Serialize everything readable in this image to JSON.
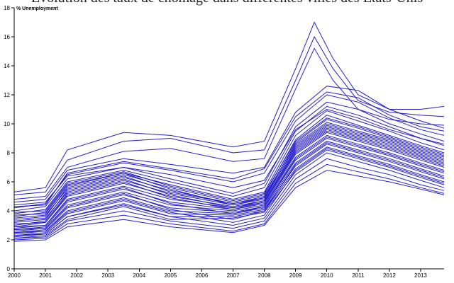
{
  "chart_data": {
    "type": "line",
    "title": "Évolution des taux de chômage dans différentes villes des Etats-Unis",
    "ylabel": "% Unemployment",
    "xlabel": "",
    "xlim": [
      2000,
      2013.75
    ],
    "ylim": [
      0,
      18
    ],
    "x_ticks": [
      "2000",
      "2001",
      "2002",
      "2003",
      "2004",
      "2005",
      "2006",
      "2007",
      "2008",
      "2009",
      "2010",
      "2011",
      "2012",
      "2013"
    ],
    "y_ticks": [
      "0",
      "2",
      "4",
      "6",
      "8",
      "10",
      "12",
      "14",
      "16",
      "18"
    ],
    "grid": false,
    "legend": "none",
    "line_color": "#1a12c8",
    "series": [
      {
        "x": [
          2000,
          2001,
          2001.7,
          2003.5,
          2005,
          2007,
          2008,
          2009,
          2009.6,
          2010.2,
          2011,
          2012,
          2013,
          2013.75
        ],
        "y": [
          5.3,
          5.6,
          8.2,
          9.4,
          9.2,
          8.4,
          8.8,
          13.8,
          17.0,
          14.5,
          12.0,
          11.0,
          11.0,
          11.2
        ]
      },
      {
        "x": [
          2000,
          2001,
          2001.7,
          2003.5,
          2005,
          2007,
          2008,
          2009,
          2009.6,
          2010.2,
          2011,
          2012,
          2013,
          2013.75
        ],
        "y": [
          5.1,
          5.3,
          7.5,
          8.8,
          9.0,
          8.0,
          8.2,
          13.0,
          16.0,
          13.8,
          11.6,
          10.8,
          10.6,
          10.5
        ]
      },
      {
        "x": [
          2000,
          2001,
          2001.7,
          2003.5,
          2005,
          2007,
          2008,
          2009,
          2009.6,
          2010.2,
          2011,
          2012,
          2013,
          2013.75
        ],
        "y": [
          4.8,
          5.0,
          7.0,
          8.1,
          8.3,
          7.4,
          7.6,
          12.4,
          15.2,
          13.0,
          11.0,
          10.3,
          10.0,
          9.9
        ]
      },
      {
        "x": [
          2000,
          2001,
          2001.7,
          2003.5,
          2005,
          2007,
          2008,
          2009,
          2010,
          2011,
          2012,
          2013,
          2013.75
        ],
        "y": [
          4.6,
          4.8,
          6.8,
          7.6,
          7.2,
          6.6,
          7.0,
          10.8,
          12.6,
          12.3,
          11.0,
          10.2,
          9.7
        ]
      },
      {
        "x": [
          2000,
          2001,
          2001.7,
          2003.5,
          2005,
          2007,
          2008,
          2009,
          2010,
          2011,
          2012,
          2013,
          2013.75
        ],
        "y": [
          4.2,
          4.5,
          6.5,
          7.3,
          6.8,
          6.0,
          6.6,
          10.2,
          12.0,
          11.5,
          10.4,
          9.6,
          9.2
        ]
      },
      {
        "x": [
          2000,
          2001,
          2001.7,
          2003.5,
          2005,
          2007,
          2008,
          2009,
          2010,
          2011,
          2012,
          2013,
          2013.75
        ],
        "y": [
          4.0,
          4.3,
          6.2,
          7.0,
          6.2,
          5.2,
          5.9,
          9.8,
          11.5,
          11.0,
          10.0,
          9.3,
          8.8
        ]
      },
      {
        "x": [
          2000,
          2001,
          2001.7,
          2003.5,
          2005,
          2007,
          2008,
          2009,
          2010,
          2011,
          2012,
          2013,
          2013.75
        ],
        "y": [
          3.8,
          4.1,
          6.0,
          6.8,
          6.0,
          5.0,
          5.6,
          9.5,
          11.2,
          10.6,
          9.8,
          9.0,
          8.5
        ]
      },
      {
        "x": [
          2000,
          2001,
          2001.7,
          2003.5,
          2005,
          2007,
          2008,
          2009,
          2010,
          2011,
          2012,
          2013,
          2013.75
        ],
        "y": [
          3.6,
          3.9,
          5.8,
          6.6,
          5.8,
          4.8,
          5.3,
          9.2,
          10.9,
          10.2,
          9.5,
          8.7,
          8.2
        ]
      },
      {
        "x": [
          2000,
          2001,
          2001.7,
          2003.5,
          2005,
          2007,
          2008,
          2009,
          2010,
          2011,
          2012,
          2013,
          2013.75
        ],
        "y": [
          3.4,
          3.6,
          5.6,
          6.5,
          5.6,
          4.6,
          5.1,
          8.9,
          10.6,
          9.9,
          9.2,
          8.5,
          8.0
        ]
      },
      {
        "x": [
          2000,
          2001,
          2001.7,
          2003.5,
          2005,
          2007,
          2008,
          2009,
          2010,
          2011,
          2012,
          2013,
          2013.75
        ],
        "y": [
          3.2,
          3.4,
          5.4,
          6.3,
          5.4,
          4.5,
          4.9,
          8.7,
          10.3,
          9.7,
          9.0,
          8.3,
          7.8
        ]
      },
      {
        "x": [
          2000,
          2001,
          2001.7,
          2003.5,
          2005,
          2007,
          2008,
          2009,
          2010,
          2011,
          2012,
          2013,
          2013.75
        ],
        "y": [
          3.0,
          3.3,
          5.2,
          6.1,
          5.2,
          4.4,
          4.8,
          8.5,
          10.0,
          9.4,
          8.8,
          8.1,
          7.6
        ]
      },
      {
        "x": [
          2000,
          2001,
          2001.7,
          2003.5,
          2005,
          2007,
          2008,
          2009,
          2010,
          2011,
          2012,
          2013,
          2013.75
        ],
        "y": [
          2.9,
          3.2,
          5.0,
          5.9,
          5.0,
          4.3,
          4.7,
          8.3,
          9.8,
          9.2,
          8.6,
          7.9,
          7.4
        ]
      },
      {
        "x": [
          2000,
          2001,
          2001.7,
          2003.5,
          2005,
          2007,
          2008,
          2009,
          2010,
          2011,
          2012,
          2013,
          2013.75
        ],
        "y": [
          2.8,
          3.0,
          4.8,
          5.7,
          4.8,
          4.2,
          4.6,
          8.1,
          9.6,
          9.0,
          8.4,
          7.7,
          7.2
        ]
      },
      {
        "x": [
          2000,
          2001,
          2001.7,
          2003.5,
          2005,
          2007,
          2008,
          2009,
          2010,
          2011,
          2012,
          2013,
          2013.75
        ],
        "y": [
          2.7,
          2.9,
          4.6,
          5.5,
          4.6,
          4.1,
          4.5,
          7.9,
          9.4,
          8.8,
          8.2,
          7.5,
          7.0
        ]
      },
      {
        "x": [
          2000,
          2001,
          2001.7,
          2003.5,
          2005,
          2007,
          2008,
          2009,
          2010,
          2011,
          2012,
          2013,
          2013.75
        ],
        "y": [
          2.6,
          2.8,
          4.4,
          5.3,
          4.4,
          4.0,
          4.4,
          7.7,
          9.2,
          8.6,
          8.0,
          7.3,
          6.8
        ]
      },
      {
        "x": [
          2000,
          2001,
          2001.7,
          2003.5,
          2005,
          2007,
          2008,
          2009,
          2010,
          2011,
          2012,
          2013,
          2013.75
        ],
        "y": [
          2.5,
          2.7,
          4.2,
          5.1,
          4.2,
          3.9,
          4.3,
          7.5,
          9.0,
          8.4,
          7.8,
          7.1,
          6.6
        ]
      },
      {
        "x": [
          2000,
          2001,
          2001.7,
          2003.5,
          2005,
          2007,
          2008,
          2009,
          2010,
          2011,
          2012,
          2013,
          2013.75
        ],
        "y": [
          2.4,
          2.6,
          4.0,
          4.9,
          4.0,
          3.8,
          4.2,
          7.3,
          8.8,
          8.2,
          7.6,
          6.9,
          6.4
        ]
      },
      {
        "x": [
          2000,
          2001,
          2001.7,
          2003.5,
          2005,
          2007,
          2008,
          2009,
          2010,
          2011,
          2012,
          2013,
          2013.75
        ],
        "y": [
          2.3,
          2.5,
          3.8,
          4.7,
          3.8,
          3.7,
          4.1,
          7.1,
          8.6,
          8.0,
          7.4,
          6.7,
          6.2
        ]
      },
      {
        "x": [
          2000,
          2001,
          2001.7,
          2003.5,
          2005,
          2007,
          2008,
          2009,
          2010,
          2011,
          2012,
          2013,
          2013.75
        ],
        "y": [
          2.2,
          2.4,
          3.6,
          4.5,
          3.6,
          3.6,
          4.0,
          6.9,
          8.4,
          7.8,
          7.2,
          6.5,
          6.0
        ]
      },
      {
        "x": [
          2000,
          2001,
          2001.7,
          2003.5,
          2005,
          2007,
          2008,
          2009,
          2010,
          2011,
          2012,
          2013,
          2013.75
        ],
        "y": [
          2.1,
          2.3,
          3.4,
          4.3,
          3.4,
          3.5,
          3.9,
          6.7,
          8.2,
          7.6,
          7.0,
          6.3,
          5.8
        ]
      },
      {
        "x": [
          2000,
          2001,
          2001.7,
          2003.5,
          2005,
          2007,
          2008,
          2009,
          2010,
          2011,
          2012,
          2013,
          2013.75
        ],
        "y": [
          4.4,
          4.6,
          6.4,
          7.0,
          6.5,
          5.6,
          6.1,
          9.6,
          11.0,
          10.4,
          9.6,
          9.0,
          8.6
        ]
      },
      {
        "x": [
          2000,
          2001,
          2001.7,
          2003.5,
          2005,
          2007,
          2008,
          2009,
          2010,
          2011,
          2012,
          2013,
          2013.75
        ],
        "y": [
          3.9,
          4.0,
          5.9,
          6.7,
          5.7,
          4.7,
          5.2,
          8.8,
          10.4,
          9.8,
          9.1,
          8.4,
          7.9
        ]
      },
      {
        "x": [
          2000,
          2001,
          2001.7,
          2003.5,
          2005,
          2007,
          2008,
          2009,
          2010,
          2011,
          2012,
          2013,
          2013.75
        ],
        "y": [
          3.5,
          3.7,
          5.5,
          6.4,
          5.3,
          4.5,
          5.0,
          8.6,
          10.1,
          9.5,
          8.9,
          8.2,
          7.7
        ]
      },
      {
        "x": [
          2000,
          2001,
          2001.7,
          2003.5,
          2005,
          2007,
          2008,
          2009,
          2010,
          2011,
          2012,
          2013,
          2013.75
        ],
        "y": [
          3.1,
          3.2,
          5.1,
          6.0,
          4.9,
          4.1,
          4.6,
          8.0,
          9.5,
          8.9,
          8.3,
          7.6,
          7.1
        ]
      },
      {
        "x": [
          2000,
          2001,
          2001.7,
          2003.5,
          2005,
          2007,
          2008,
          2009,
          2010,
          2011,
          2012,
          2013,
          2013.75
        ],
        "y": [
          2.9,
          3.0,
          4.7,
          5.6,
          4.5,
          3.8,
          4.3,
          7.6,
          9.1,
          8.5,
          7.9,
          7.2,
          6.7
        ]
      },
      {
        "x": [
          2000,
          2001,
          2001.7,
          2003.5,
          2005,
          2007,
          2008,
          2009,
          2010,
          2011,
          2012,
          2013,
          2013.75
        ],
        "y": [
          2.7,
          2.8,
          4.3,
          5.2,
          4.1,
          3.4,
          4.0,
          7.2,
          8.7,
          8.1,
          7.5,
          6.8,
          6.3
        ]
      },
      {
        "x": [
          2000,
          2001,
          2001.7,
          2003.5,
          2005,
          2007,
          2008,
          2009,
          2010,
          2011,
          2012,
          2013,
          2013.75
        ],
        "y": [
          2.5,
          2.6,
          3.9,
          4.8,
          3.9,
          3.2,
          3.7,
          6.8,
          8.3,
          7.7,
          7.1,
          6.4,
          5.9
        ]
      },
      {
        "x": [
          2000,
          2001,
          2001.7,
          2003.5,
          2005,
          2007,
          2008,
          2009,
          2010,
          2011,
          2012,
          2013,
          2013.75
        ],
        "y": [
          2.3,
          2.4,
          3.6,
          4.4,
          3.6,
          3.0,
          3.5,
          6.5,
          8.0,
          7.4,
          6.8,
          6.1,
          5.6
        ]
      },
      {
        "x": [
          2000,
          2001,
          2001.7,
          2003.5,
          2005,
          2007,
          2008,
          2009,
          2010,
          2011,
          2012,
          2013,
          2013.75
        ],
        "y": [
          2.1,
          2.2,
          3.3,
          4.0,
          3.3,
          2.8,
          3.3,
          6.2,
          7.6,
          7.0,
          6.5,
          5.8,
          5.4
        ]
      },
      {
        "x": [
          2000,
          2001,
          2001.7,
          2003.5,
          2005,
          2007,
          2008,
          2009,
          2010,
          2011,
          2012,
          2013,
          2013.75
        ],
        "y": [
          2.0,
          2.1,
          3.1,
          3.7,
          3.1,
          2.6,
          3.1,
          5.9,
          7.2,
          6.7,
          6.2,
          5.6,
          5.2
        ]
      },
      {
        "x": [
          2000,
          2001,
          2001.7,
          2003.5,
          2005,
          2007,
          2008,
          2009,
          2010,
          2011,
          2012,
          2013,
          2013.75
        ],
        "y": [
          1.9,
          2.0,
          2.9,
          3.4,
          2.9,
          2.5,
          3.0,
          5.6,
          6.8,
          6.4,
          6.0,
          5.5,
          5.1
        ]
      },
      {
        "x": [
          2000,
          2001,
          2001.7,
          2003.5,
          2005,
          2007,
          2008,
          2009,
          2010,
          2011,
          2012,
          2013,
          2013.75
        ],
        "y": [
          3.3,
          3.5,
          5.3,
          6.2,
          5.1,
          4.2,
          4.7,
          8.2,
          9.7,
          9.1,
          8.5,
          7.8,
          7.3
        ]
      },
      {
        "x": [
          2000,
          2001,
          2001.7,
          2003.5,
          2005,
          2007,
          2008,
          2009,
          2010,
          2011,
          2012,
          2013,
          2013.75
        ],
        "y": [
          4.3,
          4.4,
          6.6,
          7.4,
          6.9,
          6.2,
          6.9,
          10.5,
          12.2,
          11.8,
          10.6,
          9.8,
          9.5
        ]
      },
      {
        "x": [
          2000,
          2001,
          2001.7,
          2003.5,
          2005,
          2007,
          2008,
          2009,
          2010,
          2011,
          2012,
          2013,
          2013.75
        ],
        "y": [
          3.7,
          3.8,
          5.7,
          6.6,
          5.5,
          4.4,
          4.9,
          8.4,
          9.9,
          9.3,
          8.7,
          8.0,
          7.5
        ]
      }
    ]
  }
}
